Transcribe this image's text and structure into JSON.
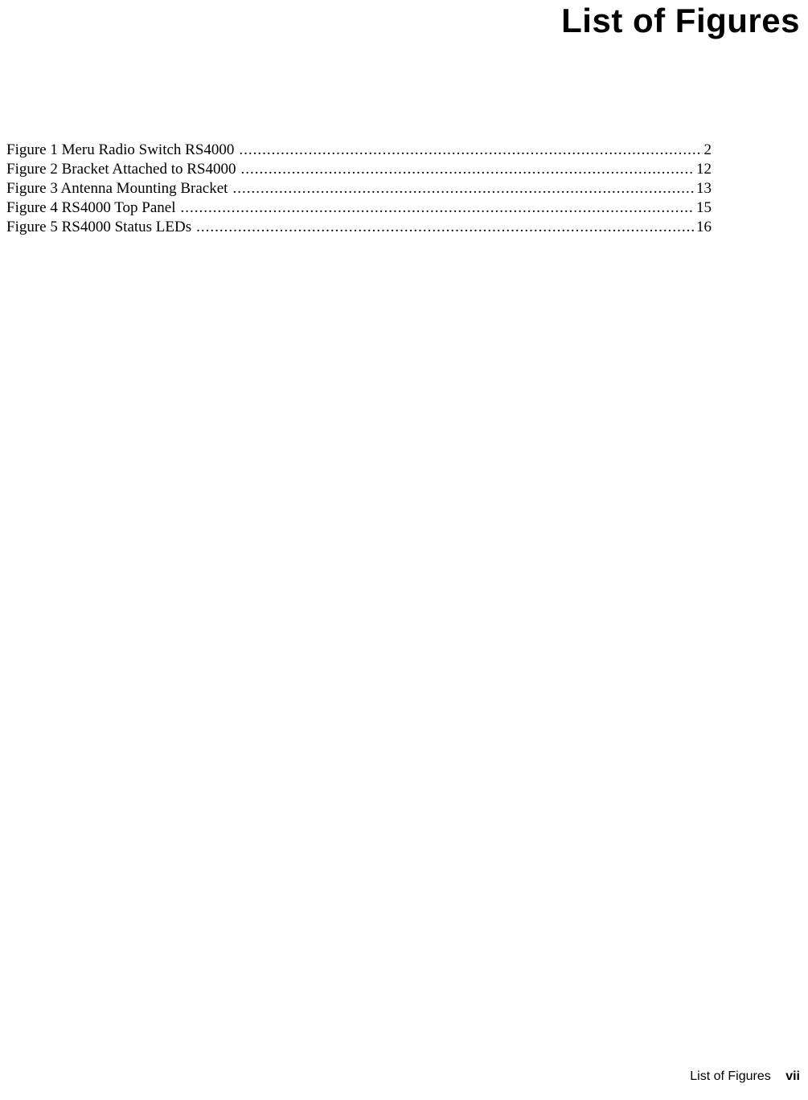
{
  "title": "List of Figures",
  "entries": [
    {
      "label": "Figure 1  Meru Radio Switch RS4000",
      "page": "2"
    },
    {
      "label": "Figure 2  Bracket Attached to RS4000",
      "page": "12"
    },
    {
      "label": "Figure 3  Antenna Mounting Bracket",
      "page": "13"
    },
    {
      "label": "Figure 4  RS4000 Top Panel",
      "page": "15"
    },
    {
      "label": "Figure 5  RS4000 Status LEDs",
      "page": "16"
    }
  ],
  "footer": {
    "label": "List of Figures",
    "roman": "vii"
  },
  "colors": {
    "background": "#ffffff",
    "text": "#000000"
  },
  "typography": {
    "title_fontsize": 42,
    "body_fontsize": 19,
    "footer_fontsize": 16,
    "title_family": "Arial",
    "body_family": "Times New Roman"
  }
}
